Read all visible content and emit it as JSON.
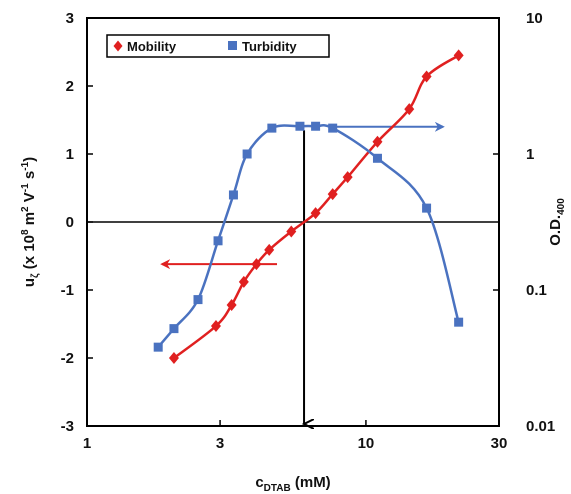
{
  "chart_data": {
    "type": "line",
    "title": "",
    "xlabel": {
      "main": "c",
      "sub": "DTAB",
      "rest": " (mM)"
    },
    "ylabel_left": {
      "main": "u",
      "sub": "ζ",
      "rest": " (x 10",
      "sup1": "8",
      "mid": " m",
      "sup2": "2",
      "mid2": " V",
      "sup3": "-1",
      "mid3": " s",
      "sup4": "-1",
      "end": ")"
    },
    "ylabel_right": {
      "main": "O.D.",
      "sub": "400"
    },
    "x_scale": "log",
    "xlim": [
      1,
      30
    ],
    "x_ticks": [
      1,
      3,
      10,
      30
    ],
    "x_tick_labels": [
      "1",
      "3",
      "10",
      "30"
    ],
    "ylim_left": [
      -3,
      3
    ],
    "y_left_ticks": [
      -3,
      -2,
      -1,
      0,
      1,
      2,
      3
    ],
    "y_left_tick_labels": [
      "-3",
      "-2",
      "-1",
      "0",
      "1",
      "2",
      "3"
    ],
    "y_right_scale": "log",
    "ylim_right": [
      0.01,
      10
    ],
    "y_right_ticks": [
      0.01,
      0.1,
      1,
      10
    ],
    "y_right_tick_labels": [
      "0.01",
      "0.1",
      "1",
      "10"
    ],
    "legend_position": "top-left",
    "series": [
      {
        "name": "Mobility",
        "axis": "left",
        "color": "#e02020",
        "marker": "diamond",
        "x": [
          2.05,
          2.9,
          3.3,
          3.65,
          4.05,
          4.5,
          5.4,
          6.6,
          7.6,
          8.6,
          11.0,
          14.3,
          16.5,
          21.5
        ],
        "values": [
          -2.0,
          -1.53,
          -1.22,
          -0.88,
          -0.62,
          -0.41,
          -0.14,
          0.13,
          0.41,
          0.66,
          1.18,
          1.66,
          2.14,
          2.45
        ]
      },
      {
        "name": "Turbidity",
        "axis": "right",
        "color": "#4a72c0",
        "marker": "square",
        "x": [
          1.8,
          2.05,
          2.5,
          2.95,
          3.35,
          3.75,
          4.6,
          5.8,
          6.6,
          7.6,
          11.0,
          16.5,
          21.5
        ],
        "values": [
          0.038,
          0.052,
          0.085,
          0.23,
          0.5,
          1.0,
          1.55,
          1.6,
          1.6,
          1.55,
          0.93,
          0.4,
          0.058
        ]
      }
    ],
    "annotations": {
      "arrow_left": {
        "from_x": 4.8,
        "to_x": 1.8,
        "y": -0.62,
        "color": "#e02020"
      },
      "arrow_right": {
        "from_x": 7.6,
        "to_x": 19.5,
        "y": 1.4,
        "color": "#4a72c0"
      },
      "cmc_arrow": {
        "x": 6.0,
        "color": "#000000"
      }
    },
    "grid": false
  }
}
